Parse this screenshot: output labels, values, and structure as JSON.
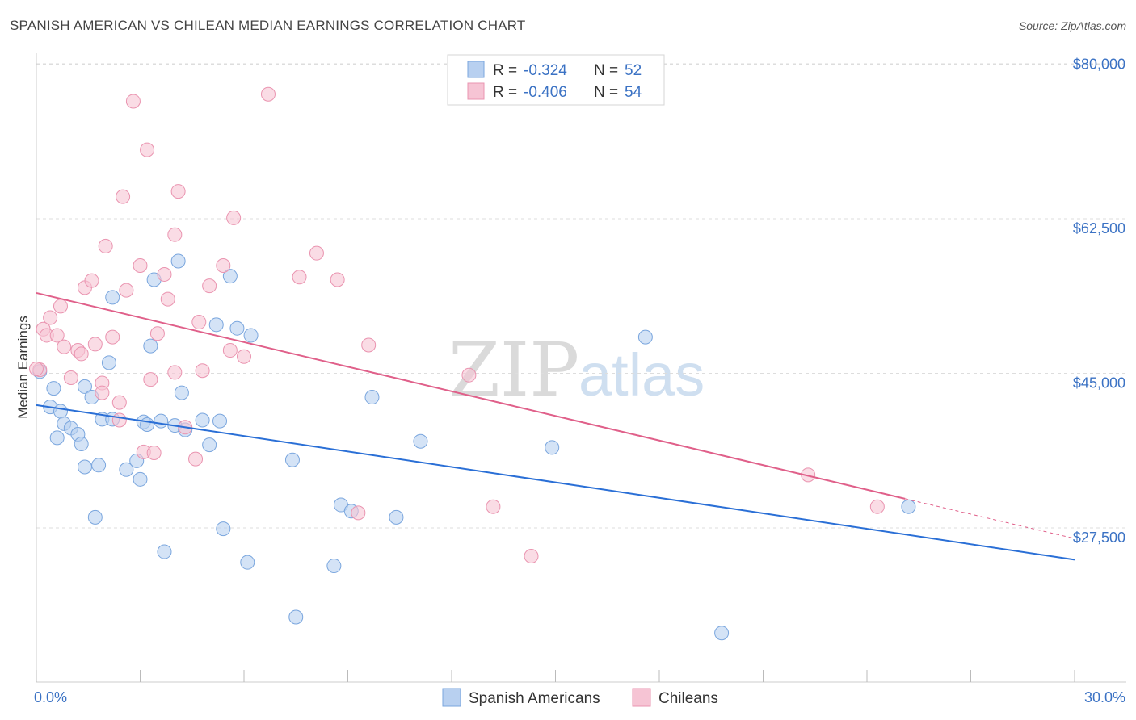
{
  "title": "SPANISH AMERICAN VS CHILEAN MEDIAN EARNINGS CORRELATION CHART",
  "source": "Source: ZipAtlas.com",
  "watermark": {
    "zip": "ZIP",
    "atlas": "atlas"
  },
  "colors": {
    "blue_fill": "#b8d0f0",
    "blue_stroke": "#7aa6de",
    "blue_line": "#2a6fd6",
    "pink_fill": "#f6c4d4",
    "pink_stroke": "#ea94b0",
    "pink_line": "#e0608a",
    "axis_text": "#3b72c4",
    "grid": "#dddddd"
  },
  "legend": {
    "rows": [
      {
        "r_label": "R = ",
        "r_value": "-0.324",
        "n_label": "N = ",
        "n_value": "52"
      },
      {
        "r_label": "R = ",
        "r_value": "-0.406",
        "n_label": "N = ",
        "n_value": "54"
      }
    ]
  },
  "bottom_legend": [
    "Spanish Americans",
    "Chileans"
  ],
  "chart_data": {
    "type": "scatter",
    "title": "SPANISH AMERICAN VS CHILEAN MEDIAN EARNINGS CORRELATION CHART",
    "xlabel": "",
    "ylabel": "Median Earnings",
    "xlim": [
      0,
      30
    ],
    "ylim": [
      12000,
      82000
    ],
    "x_tick_labels": [
      "0.0%",
      "30.0%"
    ],
    "y_ticks": [
      27500,
      45000,
      62500,
      80000
    ],
    "y_tick_labels": [
      "$27,500",
      "$45,000",
      "$62,500",
      "$80,000"
    ],
    "series": [
      {
        "name": "Spanish Americans",
        "r": -0.324,
        "n": 52,
        "trend": {
          "x0": 0,
          "y0": 41400,
          "x1": 30,
          "y1": 23900
        },
        "points": [
          [
            0.1,
            45200
          ],
          [
            0.5,
            43300
          ],
          [
            0.4,
            41200
          ],
          [
            0.7,
            40700
          ],
          [
            0.8,
            39300
          ],
          [
            1.0,
            38800
          ],
          [
            0.6,
            37700
          ],
          [
            1.2,
            38100
          ],
          [
            1.3,
            37000
          ],
          [
            1.4,
            43500
          ],
          [
            1.6,
            42300
          ],
          [
            1.9,
            39800
          ],
          [
            2.2,
            39800
          ],
          [
            2.1,
            46200
          ],
          [
            2.2,
            53600
          ],
          [
            1.4,
            34400
          ],
          [
            1.8,
            34600
          ],
          [
            1.7,
            28700
          ],
          [
            2.6,
            34100
          ],
          [
            2.9,
            35100
          ],
          [
            3.0,
            33000
          ],
          [
            3.1,
            39500
          ],
          [
            3.2,
            39200
          ],
          [
            3.3,
            48100
          ],
          [
            3.4,
            55600
          ],
          [
            3.6,
            39600
          ],
          [
            4.0,
            39100
          ],
          [
            4.2,
            42800
          ],
          [
            4.1,
            57700
          ],
          [
            4.3,
            38600
          ],
          [
            4.8,
            39700
          ],
          [
            5.0,
            36900
          ],
          [
            5.3,
            39600
          ],
          [
            5.6,
            56000
          ],
          [
            5.2,
            50500
          ],
          [
            5.8,
            50100
          ],
          [
            6.2,
            49300
          ],
          [
            5.4,
            27400
          ],
          [
            3.7,
            24800
          ],
          [
            6.1,
            23600
          ],
          [
            7.4,
            35200
          ],
          [
            7.5,
            17400
          ],
          [
            8.8,
            30100
          ],
          [
            9.1,
            29400
          ],
          [
            9.7,
            42300
          ],
          [
            10.4,
            28700
          ],
          [
            11.1,
            37300
          ],
          [
            14.9,
            36600
          ],
          [
            17.6,
            49100
          ],
          [
            8.6,
            23200
          ],
          [
            19.8,
            15600
          ],
          [
            25.2,
            29900
          ]
        ]
      },
      {
        "name": "Chileans",
        "r": -0.406,
        "n": 54,
        "trend": {
          "x0": 0,
          "y0": 54100,
          "x1": 25.1,
          "y1": 30800
        },
        "trend_dashed_to": {
          "x": 30,
          "y": 26300
        },
        "points": [
          [
            0.1,
            45400
          ],
          [
            0.2,
            50000
          ],
          [
            0.3,
            49300
          ],
          [
            0.4,
            51300
          ],
          [
            0.6,
            49300
          ],
          [
            0.7,
            52600
          ],
          [
            0.8,
            48000
          ],
          [
            1.0,
            44500
          ],
          [
            1.2,
            47600
          ],
          [
            1.3,
            47200
          ],
          [
            1.4,
            54700
          ],
          [
            1.6,
            55500
          ],
          [
            1.7,
            48300
          ],
          [
            1.9,
            43900
          ],
          [
            1.9,
            42800
          ],
          [
            2.0,
            59400
          ],
          [
            2.2,
            49100
          ],
          [
            2.4,
            39700
          ],
          [
            2.4,
            41700
          ],
          [
            2.5,
            65000
          ],
          [
            2.6,
            54400
          ],
          [
            2.8,
            75800
          ],
          [
            3.0,
            57200
          ],
          [
            3.1,
            36100
          ],
          [
            3.2,
            70300
          ],
          [
            3.3,
            44300
          ],
          [
            3.4,
            36000
          ],
          [
            3.5,
            49500
          ],
          [
            3.7,
            56200
          ],
          [
            3.8,
            53400
          ],
          [
            4.0,
            45100
          ],
          [
            4.0,
            60700
          ],
          [
            4.1,
            65600
          ],
          [
            4.3,
            38900
          ],
          [
            4.6,
            35300
          ],
          [
            4.7,
            50800
          ],
          [
            4.8,
            45300
          ],
          [
            5.0,
            54900
          ],
          [
            5.4,
            57200
          ],
          [
            5.6,
            47600
          ],
          [
            5.7,
            62600
          ],
          [
            6.0,
            46900
          ],
          [
            6.7,
            76600
          ],
          [
            7.6,
            55900
          ],
          [
            8.1,
            58600
          ],
          [
            8.7,
            55600
          ],
          [
            9.3,
            29200
          ],
          [
            9.6,
            48200
          ],
          [
            12.5,
            44800
          ],
          [
            13.2,
            29900
          ],
          [
            14.3,
            24300
          ],
          [
            22.3,
            33500
          ],
          [
            24.3,
            29900
          ],
          [
            0.0,
            45500
          ]
        ]
      }
    ]
  }
}
